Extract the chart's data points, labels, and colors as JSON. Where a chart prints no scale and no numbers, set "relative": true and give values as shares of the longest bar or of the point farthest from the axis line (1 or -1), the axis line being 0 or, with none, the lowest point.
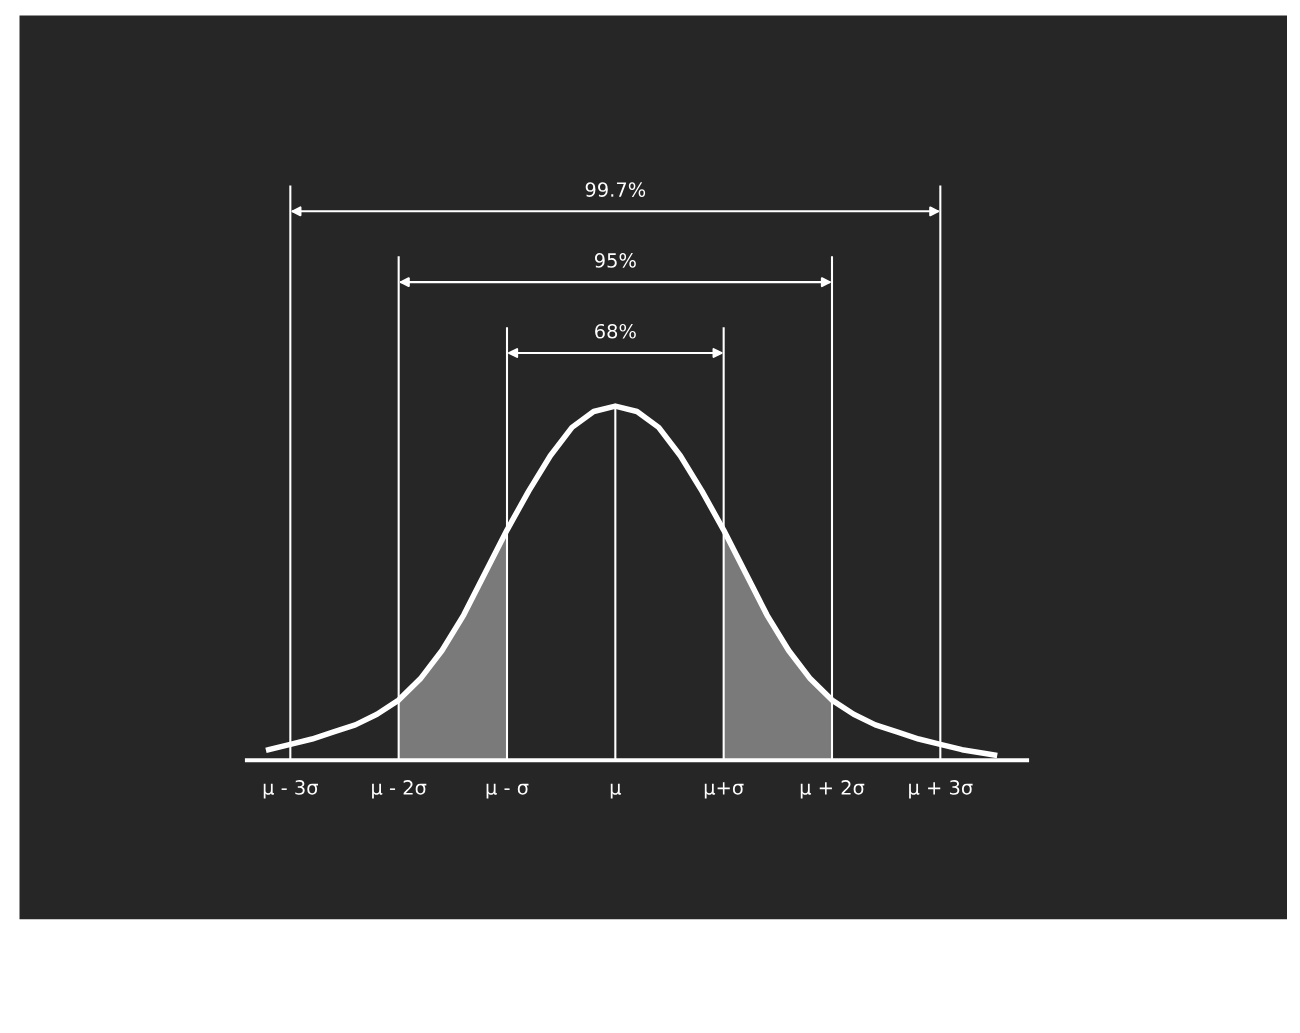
{
  "chart_data": {
    "type": "line",
    "relative": true,
    "series": [
      {
        "color": "#ffffff",
        "x": [
          -3.2,
          -3,
          -2.8,
          -2.6,
          -2.4,
          -2.2,
          -2,
          -1.8,
          -1.6,
          -1.4,
          -1.2,
          -1,
          -0.8,
          -0.6,
          -0.4,
          -0.2,
          0,
          0.2,
          0.4,
          0.6,
          0.8,
          1,
          1.2,
          1.4,
          1.6,
          1.8,
          2,
          2.2,
          2.4,
          2.6,
          2.8,
          3,
          3.2,
          3.4,
          3.5
        ],
        "values": [
          0.03,
          0.045,
          0.06,
          0.08,
          0.1,
          0.13,
          0.17,
          0.23,
          0.31,
          0.41,
          0.53,
          0.65,
          0.76,
          0.86,
          0.94,
          0.985,
          1,
          0.985,
          0.94,
          0.86,
          0.76,
          0.65,
          0.53,
          0.41,
          0.31,
          0.23,
          0.17,
          0.13,
          0.1,
          0.08,
          0.06,
          0.045,
          0.03,
          0.02,
          0.015
        ]
      },
      {
        "type": "area",
        "color": "#7a7a7a",
        "x": [
          -2,
          -1.8,
          -1.6,
          -1.4,
          -1.2,
          -1
        ],
        "values": [
          0.17,
          0.23,
          0.31,
          0.41,
          0.53,
          0.65
        ]
      },
      {
        "type": "area",
        "color": "#7a7a7a",
        "x": [
          1,
          1.2,
          1.4,
          1.6,
          1.8,
          2
        ],
        "values": [
          0.65,
          0.53,
          0.41,
          0.31,
          0.23,
          0.17
        ]
      }
    ],
    "xlim": [
      -3.4,
      3.8
    ],
    "xticks": [
      {
        "value": -3,
        "label": "μ - 3σ"
      },
      {
        "value": -2,
        "label": "μ - 2σ"
      },
      {
        "value": -1,
        "label": "μ - σ"
      },
      {
        "value": 0,
        "label": "μ"
      },
      {
        "value": 1,
        "label": "μ+σ"
      },
      {
        "value": 2,
        "label": "μ + 2σ"
      },
      {
        "value": 3,
        "label": "μ + 3σ"
      }
    ],
    "tick_labels": "x",
    "grid": false,
    "ref_lines": [
      {
        "axis": "x",
        "value": -3
      },
      {
        "axis": "x",
        "value": -2
      },
      {
        "axis": "x",
        "value": -1
      },
      {
        "axis": "x",
        "value": 0
      },
      {
        "axis": "x",
        "value": 1
      },
      {
        "axis": "x",
        "value": 2
      },
      {
        "axis": "x",
        "value": 3
      }
    ],
    "annotations": [
      "68%",
      "95%",
      "99.7%"
    ]
  }
}
